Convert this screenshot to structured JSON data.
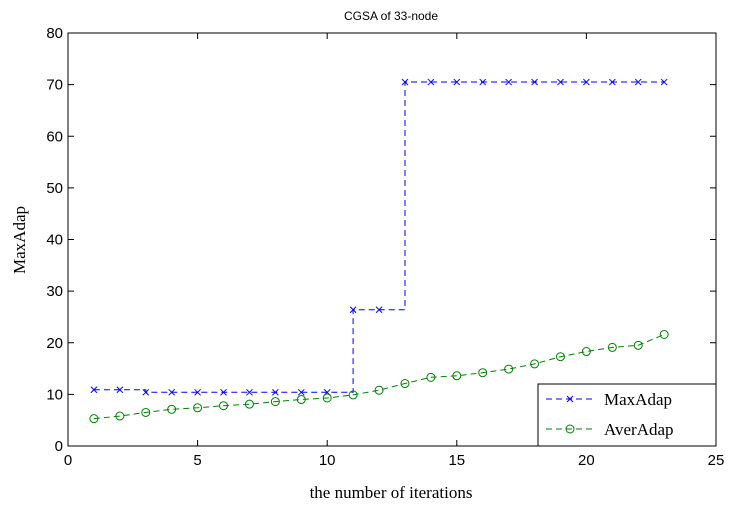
{
  "chart_data": {
    "type": "line",
    "title": "CGSA of 33-node",
    "xlabel": "the number of iterations",
    "ylabel": "MaxAdap",
    "xlim": [
      0,
      25
    ],
    "ylim": [
      0,
      80
    ],
    "xticks": [
      0,
      5,
      10,
      15,
      20,
      25
    ],
    "yticks": [
      0,
      10,
      20,
      30,
      40,
      50,
      60,
      70,
      80
    ],
    "grid": false,
    "legend_position": "bottom-right",
    "series": [
      {
        "name": "MaxAdap",
        "color": "#0000ff",
        "line_style": "dashed",
        "marker": "x",
        "x": [
          1,
          2,
          3,
          4,
          5,
          6,
          7,
          8,
          9,
          10,
          11,
          12,
          13,
          14,
          15,
          16,
          17,
          18,
          19,
          20,
          21,
          22,
          23
        ],
        "y": [
          10.9,
          10.9,
          10.4,
          10.4,
          10.4,
          10.4,
          10.4,
          10.4,
          10.4,
          10.4,
          26.4,
          26.4,
          70.5,
          70.5,
          70.5,
          70.5,
          70.5,
          70.5,
          70.5,
          70.5,
          70.5,
          70.5,
          70.5
        ],
        "step": "post"
      },
      {
        "name": "AverAdap",
        "color": "#008000",
        "line_style": "dashed",
        "marker": "circle",
        "x": [
          1,
          2,
          3,
          4,
          5,
          6,
          7,
          8,
          9,
          10,
          11,
          12,
          13,
          14,
          15,
          16,
          17,
          18,
          19,
          20,
          21,
          22,
          23
        ],
        "y": [
          5.3,
          5.8,
          6.5,
          7.1,
          7.4,
          7.8,
          8.1,
          8.6,
          9.0,
          9.3,
          9.9,
          10.8,
          12.1,
          13.3,
          13.6,
          14.2,
          14.9,
          15.9,
          17.3,
          18.3,
          19.1,
          19.5,
          21.6
        ]
      }
    ]
  }
}
